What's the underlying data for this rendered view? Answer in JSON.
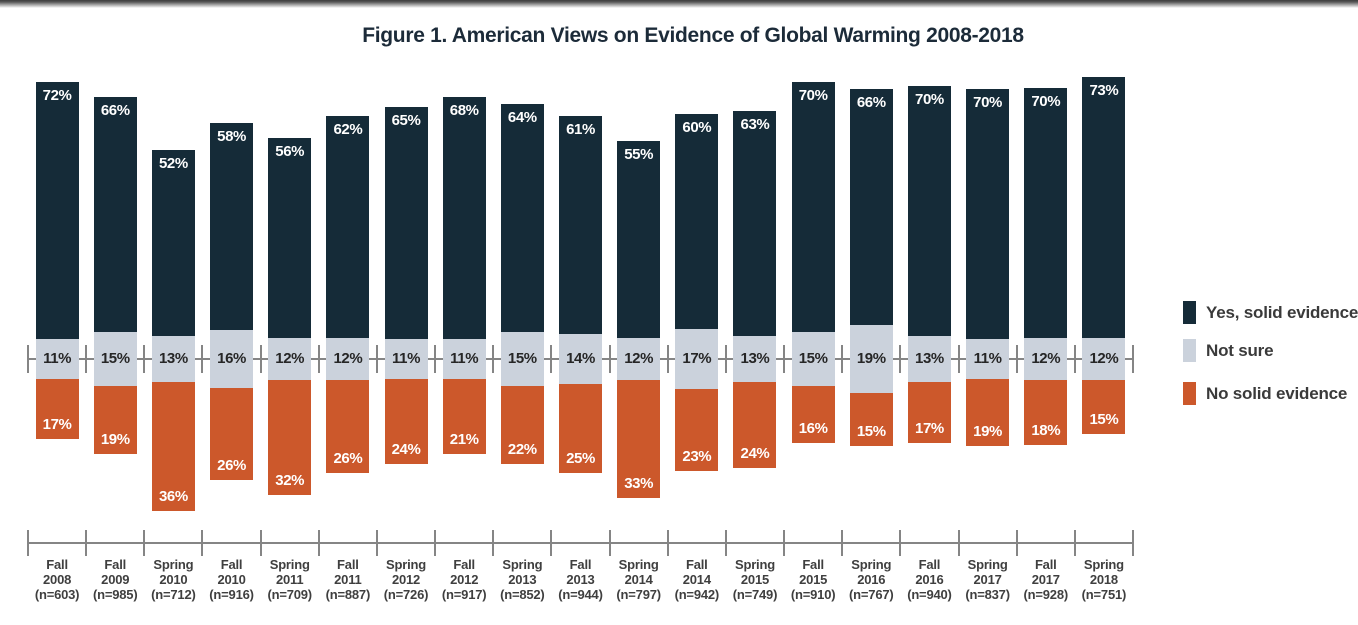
{
  "figure": {
    "title": "Figure 1. American Views on Evidence of Global Warming 2008-2018"
  },
  "colors": {
    "yes": "#152b38",
    "not_sure": "#cbd2dc",
    "no": "#cc582b",
    "axis": "#858585",
    "title_text": "#1c2b39",
    "dark_label_text": "#262626",
    "light_label_text": "#ffffff",
    "x_label_text": "#3f3f3f"
  },
  "chart_data": {
    "type": "bar",
    "subtype": "diverging_stacked",
    "title": "Figure 1. American Views on Evidence of Global Warming 2008-2018",
    "unit": "percent",
    "legend_position": "right",
    "value_labels_shown": true,
    "categories": [
      "Fall 2008",
      "Fall 2009",
      "Spring 2010",
      "Fall 2010",
      "Spring 2011",
      "Fall 2011",
      "Spring 2012",
      "Fall 2012",
      "Spring 2013",
      "Fall 2013",
      "Spring 2014",
      "Fall 2014",
      "Spring 2015",
      "Fall 2015",
      "Spring 2016",
      "Fall 2016",
      "Spring 2017",
      "Fall 2017",
      "Spring 2018"
    ],
    "sample_sizes": [
      603,
      985,
      712,
      916,
      709,
      887,
      726,
      917,
      852,
      944,
      797,
      942,
      749,
      910,
      767,
      940,
      837,
      928,
      751
    ],
    "series": [
      {
        "name": "Yes, solid evidence",
        "color": "#152b38",
        "direction": "up",
        "values": [
          72,
          66,
          52,
          58,
          56,
          62,
          65,
          68,
          64,
          61,
          55,
          60,
          63,
          70,
          66,
          70,
          70,
          70,
          73
        ]
      },
      {
        "name": "Not sure",
        "color": "#cbd2dc",
        "direction": "middle",
        "values": [
          11,
          15,
          13,
          16,
          12,
          12,
          11,
          11,
          15,
          14,
          12,
          17,
          13,
          15,
          19,
          13,
          11,
          12,
          12
        ]
      },
      {
        "name": "No solid evidence",
        "color": "#cc582b",
        "direction": "down",
        "values": [
          17,
          19,
          36,
          26,
          32,
          26,
          24,
          21,
          22,
          25,
          33,
          23,
          24,
          16,
          15,
          17,
          19,
          18,
          15
        ]
      }
    ],
    "x_tick_label_lines": [
      "season",
      "year",
      "(n=sample_size)"
    ],
    "axis": {
      "zero_line": true,
      "category_boundary_ticks": true,
      "y_gridlines": false
    }
  }
}
